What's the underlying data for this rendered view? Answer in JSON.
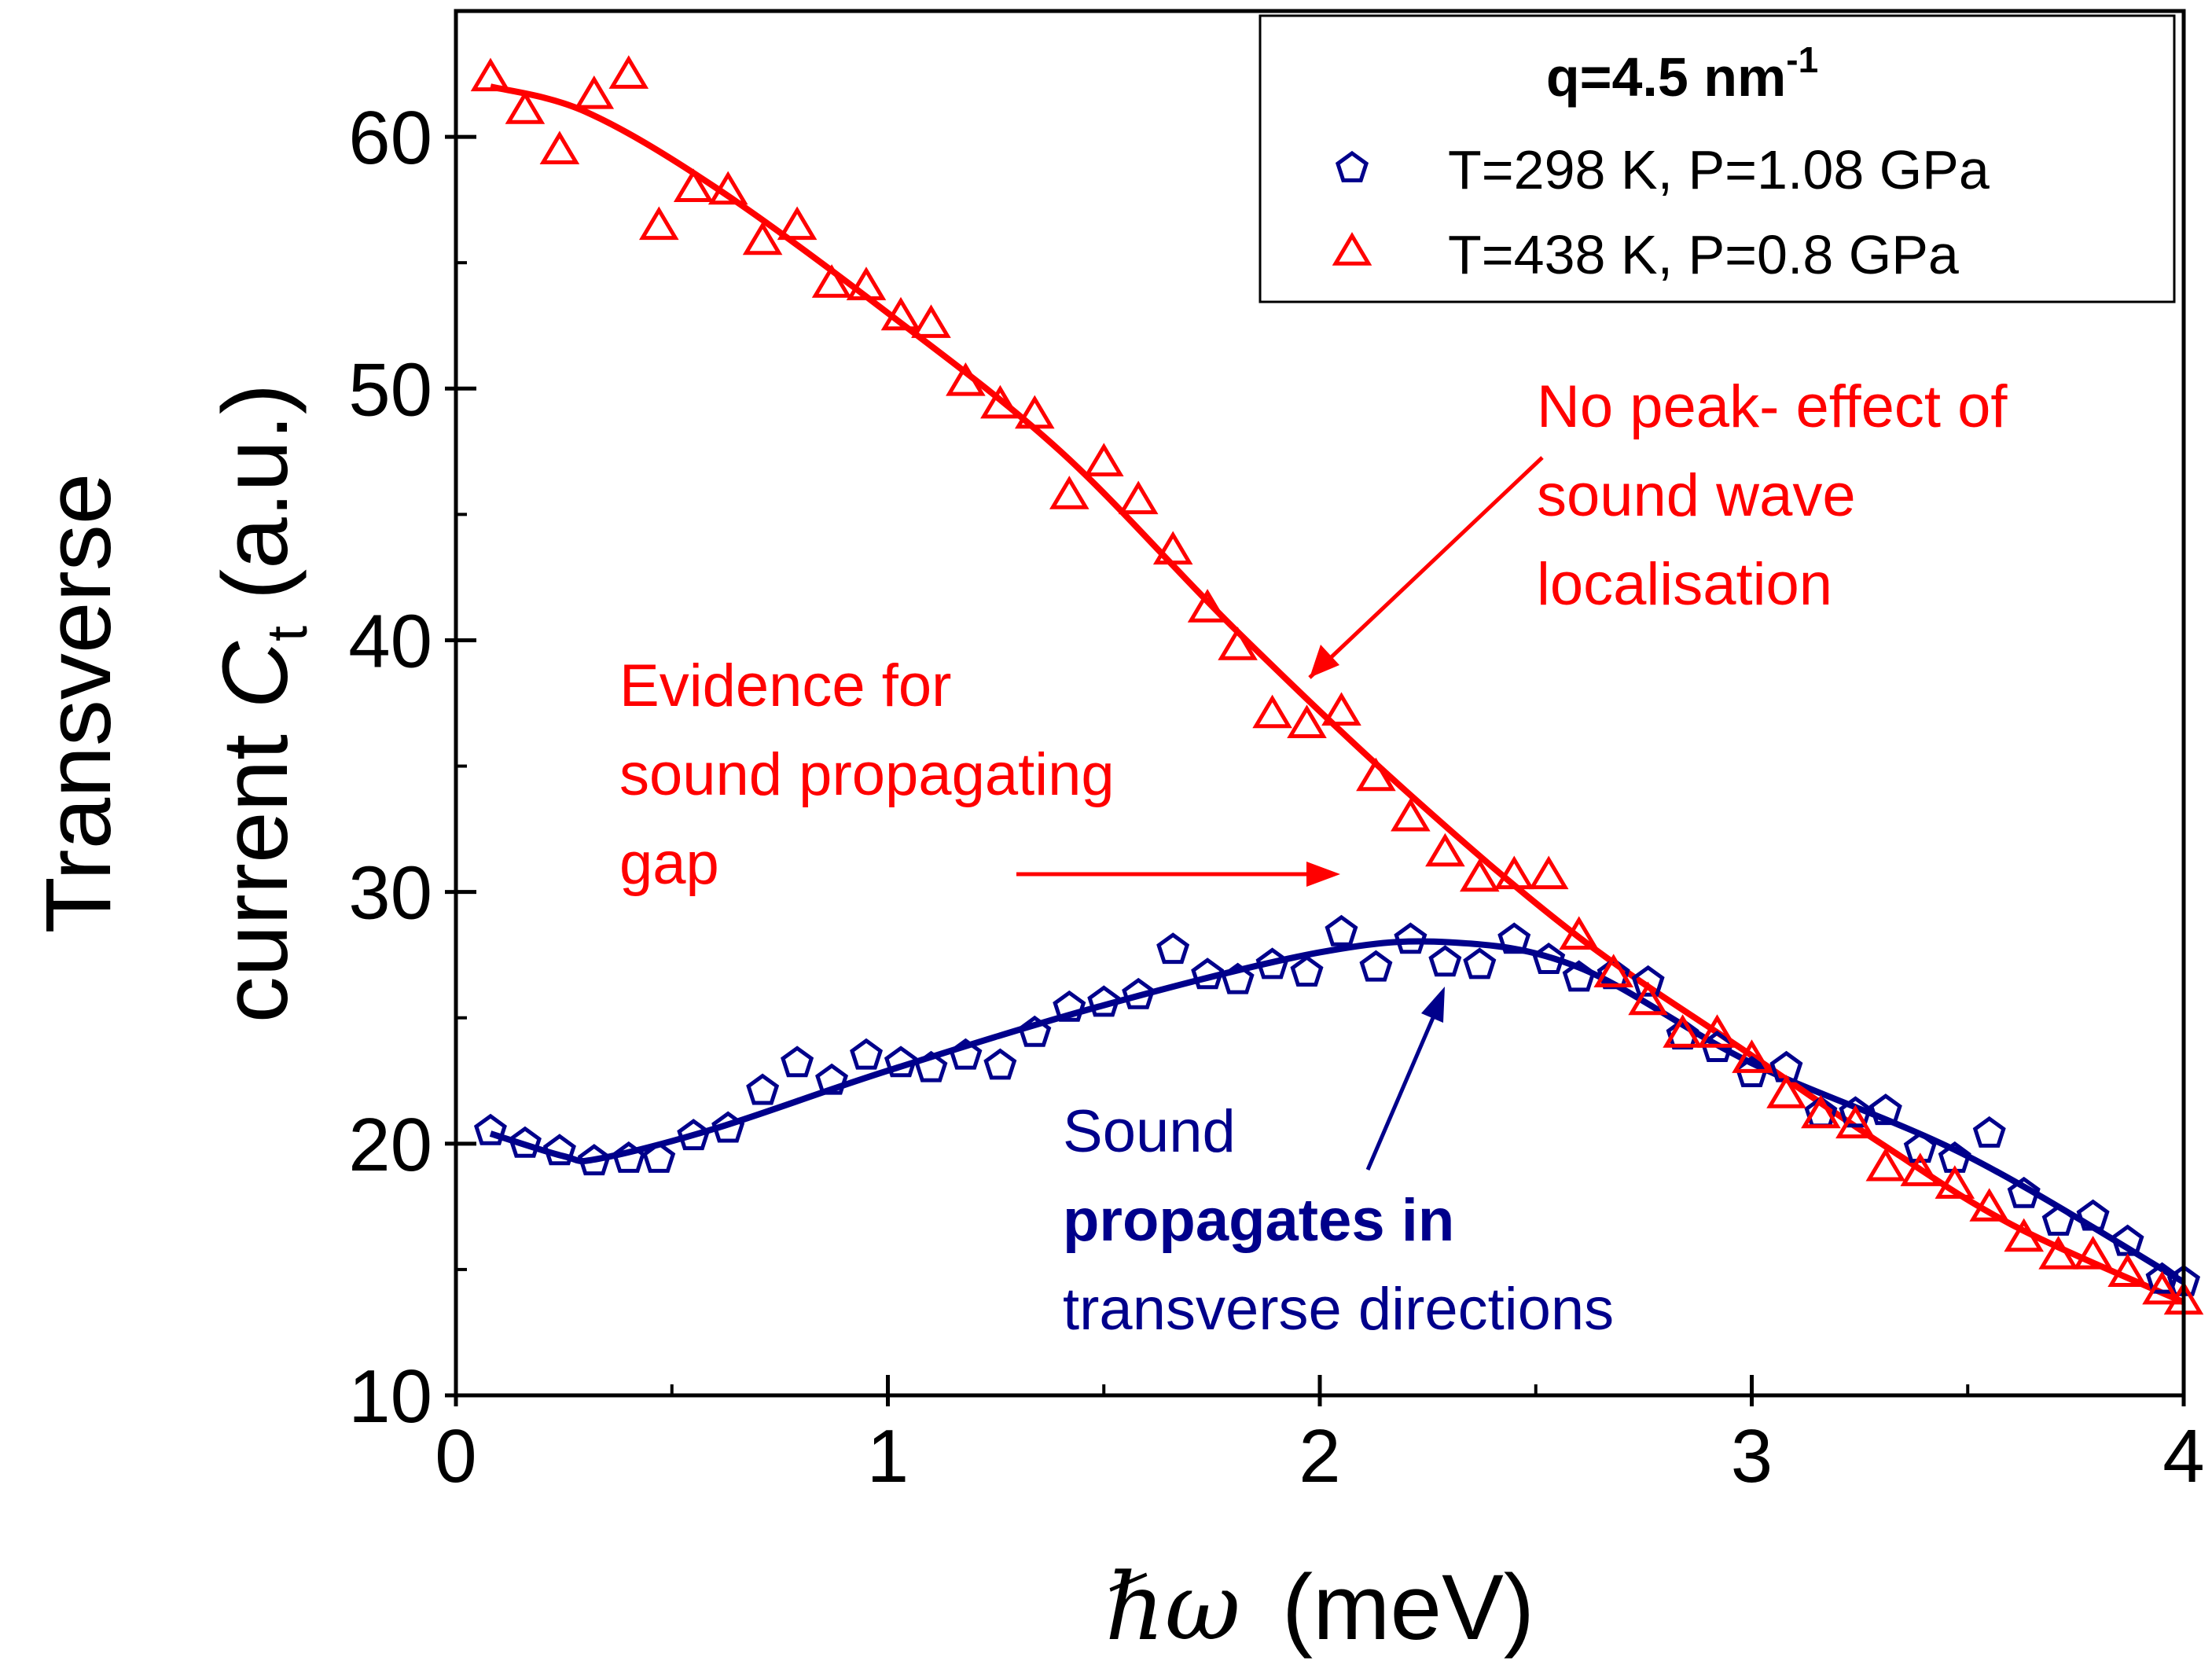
{
  "chart_data": {
    "type": "scatter",
    "xlabel_symbol": "ℏω",
    "xlabel_units": "(meV)",
    "ylabel_line1": "Transverse",
    "ylabel_line2_prefix": "current ",
    "ylabel_symbol": "C",
    "ylabel_subscript": "t",
    "ylabel_units": " (a.u.)",
    "xlim": [
      0,
      4
    ],
    "ylim": [
      10,
      65
    ],
    "x_ticks": [
      0,
      1,
      2,
      3,
      4
    ],
    "x_tick_labels": [
      "0",
      "1",
      "2",
      "3",
      "4"
    ],
    "y_ticks": [
      10,
      20,
      30,
      40,
      50,
      60
    ],
    "y_tick_labels": [
      "10",
      "20",
      "30",
      "40",
      "50",
      "60"
    ],
    "legend": {
      "title_main": "q=4.5 nm",
      "title_sup": "-1",
      "position": "top-right",
      "entries": [
        "T=298 K, P=1.08 GPa",
        "T=438 K, P=0.8 GPa"
      ]
    },
    "series": [
      {
        "name": "T=298 K, P=1.08 GPa",
        "marker": "pentagon",
        "color": "#00008b",
        "x": [
          0.08,
          0.16,
          0.24,
          0.32,
          0.4,
          0.47,
          0.55,
          0.63,
          0.71,
          0.79,
          0.87,
          0.95,
          1.03,
          1.1,
          1.18,
          1.26,
          1.34,
          1.42,
          1.5,
          1.58,
          1.66,
          1.74,
          1.81,
          1.89,
          1.97,
          2.05,
          2.13,
          2.21,
          2.29,
          2.37,
          2.45,
          2.53,
          2.6,
          2.68,
          2.76,
          2.84,
          2.92,
          3.0,
          3.08,
          3.16,
          3.24,
          3.31,
          3.39,
          3.47,
          3.55,
          3.63,
          3.71,
          3.79,
          3.87,
          3.95,
          4.0
        ],
        "y": [
          20.5,
          20.0,
          19.7,
          19.3,
          19.4,
          19.4,
          20.3,
          20.6,
          22.1,
          23.2,
          22.5,
          23.5,
          23.2,
          23.0,
          23.5,
          23.1,
          24.4,
          25.4,
          25.6,
          25.9,
          27.7,
          26.7,
          26.5,
          27.1,
          26.8,
          28.4,
          27.0,
          28.1,
          27.2,
          27.1,
          28.1,
          27.3,
          26.6,
          26.7,
          26.4,
          24.3,
          23.8,
          22.8,
          23.0,
          21.2,
          21.2,
          21.3,
          19.8,
          19.4,
          20.4,
          18.0,
          16.9,
          17.1,
          16.1,
          14.6,
          14.5
        ],
        "fit_x": [
          0.08,
          0.25,
          0.33,
          0.6,
          1.0,
          1.5,
          2.0,
          2.3,
          2.6,
          3.0,
          3.5,
          4.0
        ],
        "fit_y": [
          20.4,
          19.5,
          19.4,
          20.6,
          22.9,
          25.5,
          27.6,
          28.0,
          27.0,
          23.2,
          19.5,
          14.5
        ]
      },
      {
        "name": "T=438 K, P=0.8 GPa",
        "marker": "triangle",
        "color": "#ff0000",
        "x": [
          0.08,
          0.16,
          0.24,
          0.32,
          0.4,
          0.47,
          0.55,
          0.63,
          0.71,
          0.79,
          0.87,
          0.95,
          1.03,
          1.1,
          1.18,
          1.26,
          1.34,
          1.42,
          1.5,
          1.58,
          1.66,
          1.74,
          1.81,
          1.89,
          1.97,
          2.05,
          2.13,
          2.21,
          2.29,
          2.37,
          2.45,
          2.53,
          2.6,
          2.68,
          2.76,
          2.84,
          2.92,
          3.0,
          3.08,
          3.16,
          3.24,
          3.31,
          3.39,
          3.47,
          3.55,
          3.63,
          3.71,
          3.79,
          3.87,
          3.95,
          4.0
        ],
        "y": [
          62.3,
          61.0,
          59.4,
          61.6,
          62.4,
          56.4,
          57.9,
          57.8,
          55.8,
          56.4,
          54.1,
          54.0,
          52.8,
          52.5,
          50.2,
          49.3,
          48.9,
          45.7,
          47.0,
          45.5,
          43.5,
          41.2,
          39.7,
          37.0,
          36.6,
          37.1,
          34.5,
          32.9,
          31.5,
          30.5,
          30.6,
          30.6,
          28.2,
          26.7,
          25.6,
          24.3,
          24.3,
          23.3,
          21.9,
          21.1,
          20.7,
          19.0,
          18.8,
          18.3,
          17.4,
          16.2,
          15.5,
          15.5,
          14.8,
          14.1,
          13.7
        ],
        "fit_x": [
          0.08,
          0.3,
          0.6,
          1.0,
          1.4,
          1.8,
          2.2,
          2.6,
          3.0,
          3.3,
          3.6,
          4.0
        ],
        "fit_y": [
          62.0,
          61.0,
          58.0,
          53.0,
          47.5,
          40.5,
          34.0,
          28.2,
          23.5,
          20.0,
          16.8,
          13.7
        ]
      }
    ],
    "annotations": [
      {
        "id": "no-peak",
        "lines": [
          "No peak- effect of",
          "sound wave",
          "localisation"
        ],
        "color": "#ff0000"
      },
      {
        "id": "evidence",
        "lines": [
          "Evidence for",
          "sound propagating",
          "gap"
        ],
        "color": "#ff0000"
      },
      {
        "id": "sound",
        "lines": [
          "Sound",
          "propagates in",
          "transverse directions"
        ],
        "bold_line": 1,
        "color": "#00008b"
      }
    ]
  }
}
